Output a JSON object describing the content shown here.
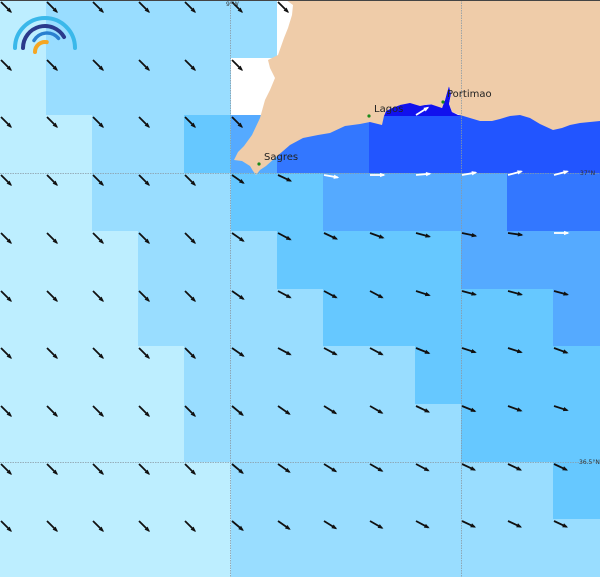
{
  "map": {
    "places": [
      {
        "name": "Sagres"
      },
      {
        "name": "Lagos"
      },
      {
        "name": "Portimao"
      }
    ],
    "axis_labels": {
      "lon": "9°W",
      "lat_top": "37°N",
      "lat_bottom": "36.5°N"
    },
    "colors": {
      "A": "#bdeeff",
      "B": "#99ddff",
      "C": "#66c8ff",
      "D": "#55aaff",
      "E": "#3377ff",
      "F": "#2255ff",
      "G": "#1111ee",
      "W": "#ffffff",
      "land": "#efcca9",
      "place_dot": "#1a8a1a",
      "arrow_dark": "#111111",
      "arrow_light": "#ffffff"
    },
    "cell_grid": [
      "ABBBBBWWWWWWW",
      "ABBBBWWWWWWWW",
      "AABBCDEEFFFFF",
      "AABBBCCDDDDEE",
      "AAABBBCCCCDDD",
      "AAABBBBCCCCCD",
      "AAAABBBBBCCCC",
      "AAAABBBBBBCCC",
      "AAAAABBBBBBBC",
      "AAAAABBBBBBBB"
    ],
    "arrow_rows": [
      {
        "angles": [
          45,
          45,
          45,
          45,
          45,
          45,
          45,
          null,
          null,
          null,
          null,
          null,
          null
        ],
        "tones": "kkkkkkk------"
      },
      {
        "angles": [
          45,
          45,
          45,
          45,
          45,
          45,
          null,
          null,
          null,
          null,
          null,
          null,
          null
        ],
        "tones": "kkkkkk-------"
      },
      {
        "angles": [
          45,
          45,
          45,
          45,
          45,
          45,
          null,
          null,
          null,
          null,
          null,
          null,
          null
        ],
        "tones": "kkkkkk-------"
      },
      {
        "angles": [
          45,
          45,
          45,
          45,
          45,
          35,
          25,
          10,
          0,
          -5,
          -10,
          -15,
          -15
        ],
        "tones": "kkkkkkkwwwwww"
      },
      {
        "angles": [
          45,
          45,
          45,
          45,
          45,
          35,
          28,
          25,
          20,
          15,
          12,
          8,
          0
        ],
        "tones": "kkkkkkkkkkkkw"
      },
      {
        "angles": [
          45,
          45,
          45,
          45,
          45,
          35,
          28,
          28,
          28,
          18,
          15,
          15,
          15
        ],
        "tones": "kkkkkkkkkkkkk"
      },
      {
        "angles": [
          45,
          45,
          45,
          45,
          45,
          35,
          28,
          28,
          28,
          22,
          18,
          18,
          20
        ],
        "tones": "kkkkkkkkkkkkk"
      },
      {
        "angles": [
          45,
          45,
          45,
          45,
          45,
          40,
          35,
          32,
          30,
          25,
          22,
          20,
          18
        ],
        "tones": "kkkkkkkkkkkkk"
      },
      {
        "angles": [
          45,
          45,
          45,
          45,
          45,
          40,
          35,
          32,
          30,
          28,
          25,
          25,
          25
        ],
        "tones": "kkkkkkkkkkkkk"
      },
      {
        "angles": [
          45,
          45,
          45,
          45,
          45,
          40,
          35,
          32,
          30,
          28,
          25,
          25,
          25
        ],
        "tones": "kkkkkkkkkkkkk"
      }
    ],
    "bay_arrow_angle": -32,
    "logo": {
      "arc_colors": [
        "#3ab8ea",
        "#2b3a8c",
        "#2a7fcf",
        "#f5a623"
      ]
    }
  }
}
